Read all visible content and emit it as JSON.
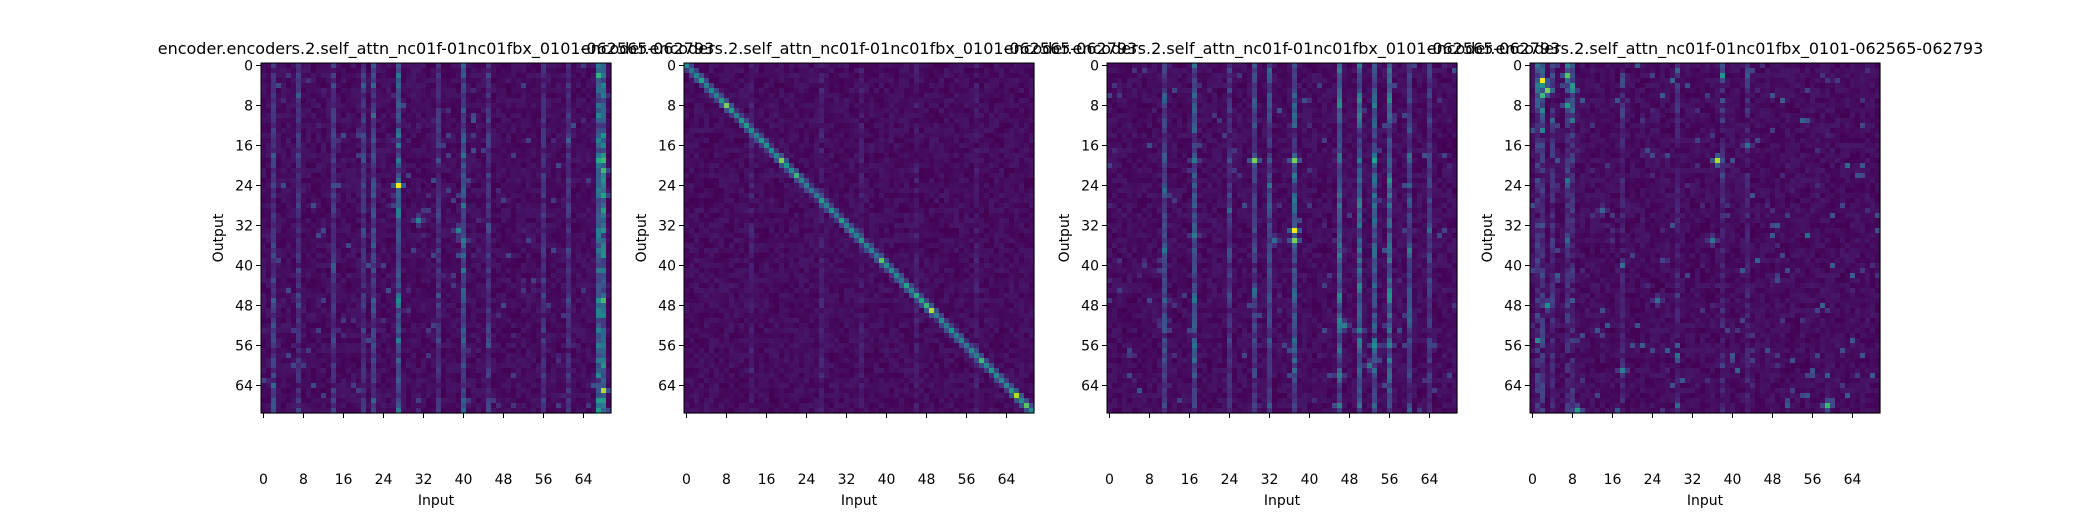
{
  "chart_data": [
    {
      "type": "heatmap",
      "panel_id": "enc2-mid",
      "title": "encoder.encoders.2.self_attn_nc01f-01nc01fbx_0101-062565-062793",
      "xlabel": "Input",
      "ylabel": "Output",
      "xticks": [
        "0",
        "8",
        "16",
        "24",
        "32",
        "40",
        "48",
        "56",
        "64"
      ],
      "yticks": [
        "0",
        "8",
        "16",
        "24",
        "32",
        "40",
        "48",
        "56",
        "64"
      ],
      "xlim": [
        0,
        70
      ],
      "ylim": [
        0,
        70
      ],
      "colormap": "viridis",
      "pattern": "vertical-bands",
      "hotspots": [
        [
          27,
          24,
          1.0
        ],
        [
          68,
          21,
          0.8
        ],
        [
          68,
          26,
          0.7
        ],
        [
          68,
          65,
          0.95
        ],
        [
          31,
          31,
          0.55
        ],
        [
          39,
          33,
          0.55
        ],
        [
          40,
          35,
          0.5
        ],
        [
          68,
          6,
          0.5
        ]
      ],
      "band_columns": [
        [
          2,
          0.25
        ],
        [
          7,
          0.2
        ],
        [
          14,
          0.22
        ],
        [
          20,
          0.2
        ],
        [
          22,
          0.3
        ],
        [
          27,
          0.45
        ],
        [
          35,
          0.22
        ],
        [
          40,
          0.35
        ],
        [
          45,
          0.2
        ],
        [
          56,
          0.18
        ],
        [
          61,
          0.18
        ],
        [
          67,
          0.55
        ],
        [
          68,
          0.6
        ]
      ]
    },
    {
      "type": "heatmap",
      "panel_id": "enc2-diag",
      "title": "encoder.encoders.2.self_attn_nc01f-01nc01fbx_0101-062565-062793",
      "xlabel": "Input",
      "ylabel": "Output",
      "xticks": [
        "0",
        "8",
        "16",
        "24",
        "32",
        "40",
        "48",
        "56",
        "64"
      ],
      "yticks": [
        "0",
        "8",
        "16",
        "24",
        "32",
        "40",
        "48",
        "56",
        "64"
      ],
      "xlim": [
        0,
        70
      ],
      "ylim": [
        0,
        70
      ],
      "colormap": "viridis",
      "pattern": "diagonal",
      "hotspots": [
        [
          8,
          8,
          0.9
        ],
        [
          19,
          19,
          0.9
        ],
        [
          22,
          22,
          0.8
        ],
        [
          39,
          39,
          0.85
        ],
        [
          49,
          49,
          0.95
        ],
        [
          48,
          48,
          0.8
        ],
        [
          59,
          59,
          0.8
        ],
        [
          66,
          66,
          0.95
        ],
        [
          68,
          68,
          0.85
        ],
        [
          33,
          33,
          0.6
        ],
        [
          53,
          53,
          0.6
        ]
      ],
      "band_columns": [
        [
          13,
          0.12
        ],
        [
          27,
          0.12
        ],
        [
          35,
          0.1
        ],
        [
          46,
          0.1
        ],
        [
          58,
          0.1
        ]
      ]
    },
    {
      "type": "heatmap",
      "panel_id": "enc2-spread",
      "title": "encoder.encoders.2.self_attn_nc01f-01nc01fbx_0101-062565-062793",
      "xlabel": "Input",
      "ylabel": "Output",
      "xticks": [
        "0",
        "8",
        "16",
        "24",
        "32",
        "40",
        "48",
        "56",
        "64"
      ],
      "yticks": [
        "0",
        "8",
        "16",
        "24",
        "32",
        "40",
        "48",
        "56",
        "64"
      ],
      "xlim": [
        0,
        70
      ],
      "ylim": [
        0,
        70
      ],
      "colormap": "viridis",
      "pattern": "vertical-bands",
      "hotspots": [
        [
          29,
          19,
          0.9
        ],
        [
          37,
          19,
          0.9
        ],
        [
          37,
          33,
          1.0
        ],
        [
          37,
          35,
          0.9
        ],
        [
          17,
          19,
          0.5
        ],
        [
          17,
          34,
          0.5
        ],
        [
          33,
          35,
          0.45
        ],
        [
          47,
          52,
          0.55
        ],
        [
          50,
          53,
          0.55
        ],
        [
          53,
          56,
          0.6
        ],
        [
          56,
          56,
          0.55
        ],
        [
          46,
          62,
          0.55
        ],
        [
          52,
          60,
          0.5
        ]
      ],
      "band_columns": [
        [
          11,
          0.3
        ],
        [
          17,
          0.35
        ],
        [
          24,
          0.2
        ],
        [
          29,
          0.3
        ],
        [
          32,
          0.3
        ],
        [
          37,
          0.35
        ],
        [
          46,
          0.45
        ],
        [
          50,
          0.45
        ],
        [
          53,
          0.4
        ],
        [
          56,
          0.45
        ],
        [
          60,
          0.3
        ],
        [
          64,
          0.2
        ]
      ]
    },
    {
      "type": "heatmap",
      "panel_id": "enc2-sparse",
      "title": "encoder.encoders.2.self_attn_nc01f-01nc01fbx_0101-062565-062793",
      "xlabel": "Input",
      "ylabel": "Output",
      "xticks": [
        "0",
        "8",
        "16",
        "24",
        "32",
        "40",
        "48",
        "56",
        "64"
      ],
      "yticks": [
        "0",
        "8",
        "16",
        "24",
        "32",
        "40",
        "48",
        "56",
        "64"
      ],
      "xlim": [
        0,
        70
      ],
      "ylim": [
        0,
        70
      ],
      "colormap": "viridis",
      "pattern": "sparse",
      "hotspots": [
        [
          2,
          3,
          1.0
        ],
        [
          3,
          5,
          0.9
        ],
        [
          2,
          6,
          0.8
        ],
        [
          7,
          2,
          0.85
        ],
        [
          7,
          8,
          0.7
        ],
        [
          37,
          19,
          0.95
        ],
        [
          8,
          5,
          0.6
        ],
        [
          59,
          68,
          0.8
        ],
        [
          9,
          69,
          0.7
        ],
        [
          3,
          48,
          0.6
        ],
        [
          18,
          61,
          0.55
        ],
        [
          25,
          47,
          0.45
        ],
        [
          36,
          35,
          0.5
        ],
        [
          43,
          16,
          0.45
        ],
        [
          14,
          29,
          0.4
        ]
      ],
      "band_columns": [
        [
          1,
          0.35
        ],
        [
          2,
          0.4
        ],
        [
          4,
          0.3
        ],
        [
          7,
          0.35
        ],
        [
          8,
          0.3
        ],
        [
          18,
          0.2
        ],
        [
          29,
          0.18
        ],
        [
          38,
          0.2
        ],
        [
          43,
          0.2
        ]
      ]
    }
  ]
}
